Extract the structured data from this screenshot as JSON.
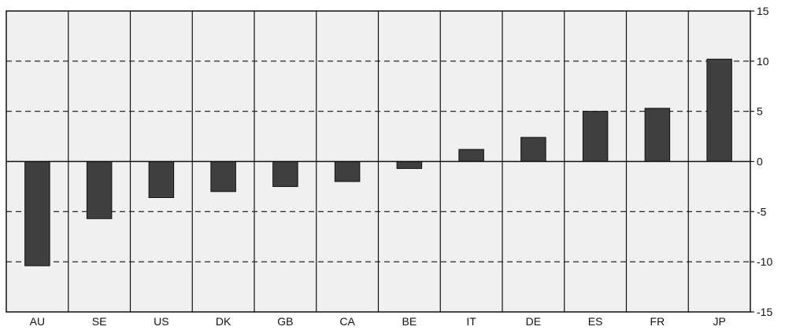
{
  "chart_data": {
    "type": "bar",
    "title": "",
    "xlabel": "",
    "ylabel": "",
    "categories": [
      "AU",
      "SE",
      "US",
      "DK",
      "GB",
      "CA",
      "BE",
      "IT",
      "DE",
      "ES",
      "FR",
      "JP"
    ],
    "series": [
      {
        "values": [
          -10.4,
          -5.7,
          -3.6,
          -3.0,
          -2.5,
          -2.0,
          -0.7,
          1.2,
          2.4,
          5.0,
          5.3,
          10.2
        ]
      }
    ],
    "ylim": [
      -15,
      15
    ],
    "yticks": [
      "15",
      "10",
      "5",
      "0",
      "-5",
      "-10",
      "-15"
    ],
    "grid": {
      "horizontal": "dashed",
      "vertical": "solid"
    },
    "y_axis_side": "right",
    "legend": "none",
    "colors": {
      "bar": "#3f3f3f",
      "plot_background": "#f0f0f0",
      "grid": "#111111"
    }
  }
}
